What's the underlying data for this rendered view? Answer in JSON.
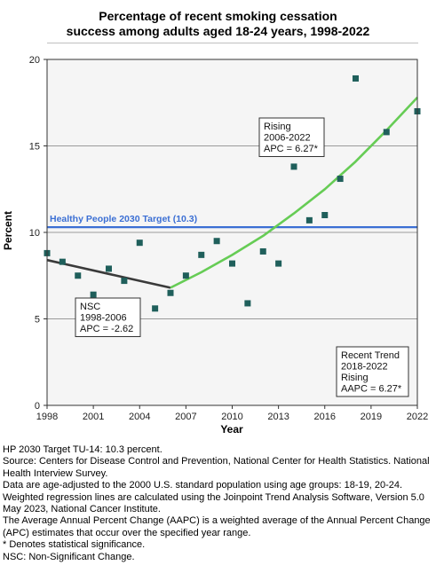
{
  "chart_data": {
    "type": "scatter",
    "title_line1": "Percentage of recent smoking cessation",
    "title_line2": "success among adults aged 18-24 years, 1998-2022",
    "xlabel": "Year",
    "ylabel": "Percent",
    "xlim": [
      1998,
      2022
    ],
    "ylim": [
      0,
      20
    ],
    "xticks": [
      1998,
      2001,
      2004,
      2007,
      2010,
      2013,
      2016,
      2019,
      2022
    ],
    "yticks": [
      0,
      5,
      10,
      15,
      20
    ],
    "grid": true,
    "points": {
      "x": [
        1998,
        1999,
        2000,
        2001,
        2002,
        2003,
        2004,
        2005,
        2006,
        2007,
        2008,
        2009,
        2010,
        2011,
        2012,
        2013,
        2014,
        2015,
        2016,
        2017,
        2018,
        2020,
        2022
      ],
      "y": [
        8.8,
        8.3,
        7.5,
        6.4,
        7.9,
        7.2,
        9.4,
        5.6,
        6.5,
        7.5,
        8.7,
        9.5,
        8.2,
        5.9,
        8.9,
        8.2,
        13.8,
        10.7,
        11.0,
        13.1,
        18.9,
        15.8,
        17.0
      ],
      "color": "#1f5f5b"
    },
    "segments": [
      {
        "x": [
          1998,
          2000,
          2002,
          2004,
          2006
        ],
        "y": [
          8.4,
          8.0,
          7.6,
          7.2,
          6.8
        ],
        "color": "#3a3a3a"
      },
      {
        "x": [
          2006,
          2008,
          2010,
          2012,
          2014,
          2016,
          2018,
          2020,
          2022
        ],
        "y": [
          6.8,
          7.7,
          8.7,
          9.8,
          11.1,
          12.5,
          14.1,
          15.9,
          17.8
        ],
        "color": "#66cc55"
      }
    ],
    "target": {
      "value": 10.3,
      "label": "Healthy People 2030 Target (10.3)",
      "color": "#3b6fd4"
    },
    "annotations": [
      {
        "lines": [
          "NSC",
          "1998-2006",
          "APC = -2.62"
        ]
      },
      {
        "lines": [
          "Rising",
          "2006-2022",
          "APC =  6.27*"
        ]
      },
      {
        "lines": [
          "Recent Trend",
          "2018-2022",
          "Rising",
          "AAPC =  6.27*"
        ]
      }
    ]
  },
  "notes": [
    "HP 2030 Target TU-14: 10.3 percent.",
    "Source: Centers for Disease Control and Prevention, National Center for Health Statistics. National Health Interview Survey.",
    "Data are age-adjusted to the 2000 U.S. standard population using age groups: 18-19, 20-24.",
    "Weighted regression lines are calculated using the Joinpoint Trend Analysis Software, Version 5.0 May 2023, National Cancer Institute.",
    "The Average Annual Percent Change (AAPC) is a weighted average of the Annual Percent Change (APC) estimates that occur over the specified year range.",
    "* Denotes statistical significance.",
    "NSC: Non-Significant Change."
  ]
}
